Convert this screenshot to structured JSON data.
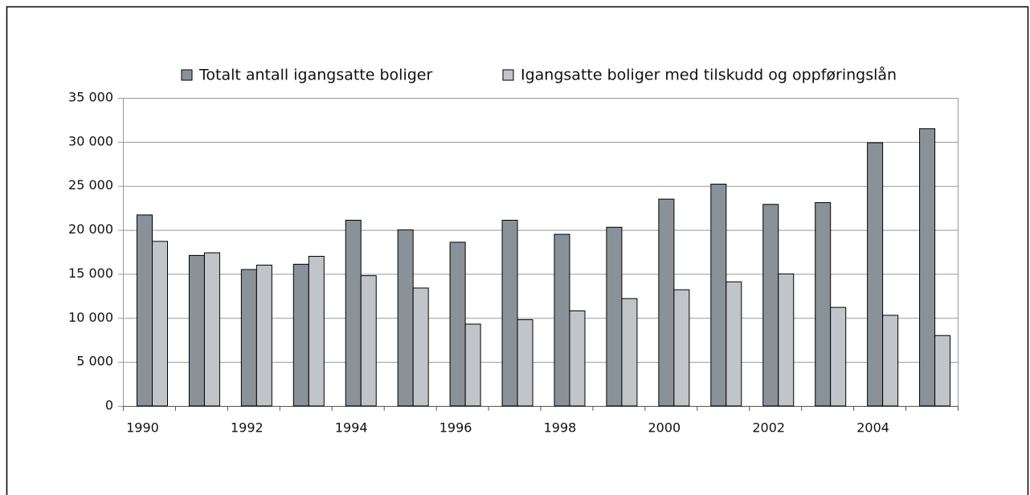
{
  "chart_data": {
    "type": "bar",
    "categories": [
      "1990",
      null,
      "1992",
      null,
      "1994",
      null,
      "1996",
      null,
      "1998",
      null,
      "2000",
      null,
      "2002",
      null,
      "2004",
      null
    ],
    "series": [
      {
        "name": "Totalt antall igangsatte boliger",
        "color": "#8a9299",
        "values": [
          21700,
          17100,
          15500,
          16100,
          21100,
          20000,
          18600,
          21100,
          19500,
          20300,
          23500,
          25200,
          22900,
          23100,
          29900,
          31500
        ]
      },
      {
        "name": "Igangsatte boliger med tilskudd og oppføringslån",
        "color": "#c1c5ca",
        "values": [
          18700,
          17400,
          16000,
          17000,
          14800,
          13400,
          9300,
          9800,
          10800,
          12200,
          13200,
          14100,
          15000,
          11200,
          10300,
          8000
        ]
      }
    ],
    "ylim": [
      0,
      35000
    ],
    "yticks": [
      0,
      {
        "value": 5000,
        "label": "5 000"
      },
      {
        "value": 10000,
        "label": "10 000"
      },
      {
        "value": 15000,
        "label": "15 000"
      },
      {
        "value": 20000,
        "label": "20 000"
      },
      {
        "value": 25000,
        "label": "25 000"
      },
      {
        "value": 30000,
        "label": "30 000"
      },
      {
        "value": 35000,
        "label": "35 000"
      }
    ],
    "grid": true,
    "legend": "top"
  }
}
